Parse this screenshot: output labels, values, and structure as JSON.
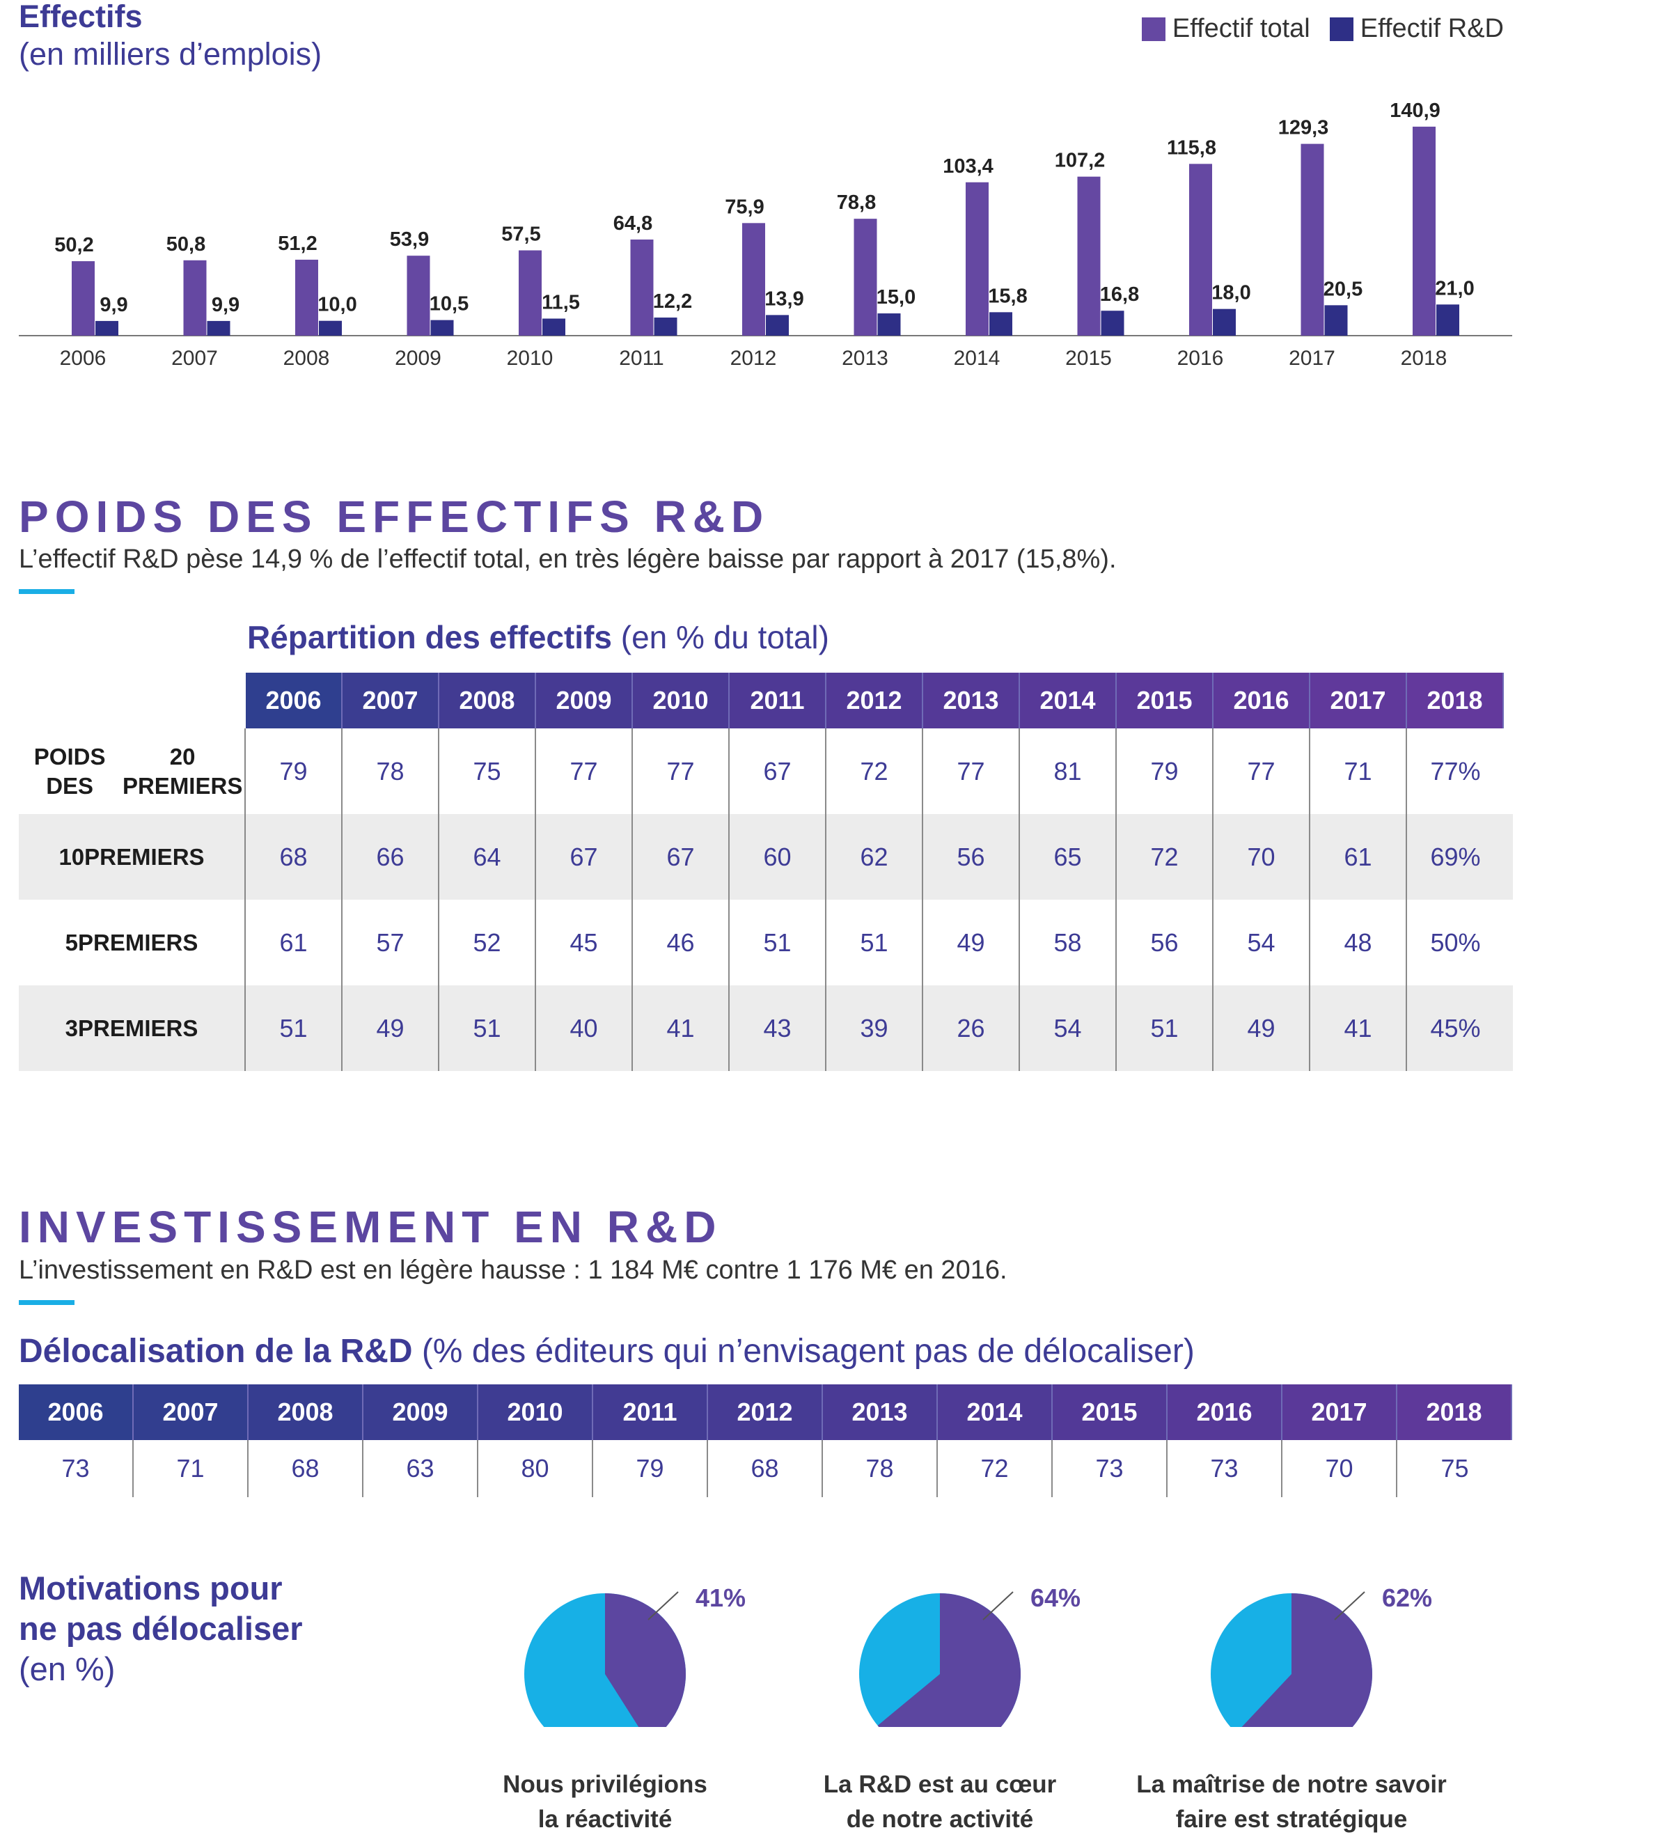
{
  "effectifs": {
    "title": "Effectifs",
    "subtitle": "(en milliers d’emplois)",
    "legend": [
      "Effectif total",
      "Effectif R&D"
    ]
  },
  "chart_data": [
    {
      "type": "bar",
      "title": "Effectifs",
      "subtitle": "(en milliers d’emplois)",
      "categories": [
        "2006",
        "2007",
        "2008",
        "2009",
        "2010",
        "2011",
        "2012",
        "2013",
        "2014",
        "2015",
        "2016",
        "2017",
        "2018"
      ],
      "series": [
        {
          "name": "Effectif total",
          "color": "#6548a2",
          "values": [
            50.2,
            50.8,
            51.2,
            53.9,
            57.5,
            64.8,
            75.9,
            78.8,
            103.4,
            107.2,
            115.8,
            129.3,
            140.9
          ],
          "labels": [
            "50,2",
            "50,8",
            "51,2",
            "53,9",
            "57,5",
            "64,8",
            "75,9",
            "78,8",
            "103,4",
            "107,2",
            "115,8",
            "129,3",
            "140,9"
          ]
        },
        {
          "name": "Effectif R&D",
          "color": "#2e2f86",
          "values": [
            9.9,
            9.9,
            10.0,
            10.5,
            11.5,
            12.2,
            13.9,
            15.0,
            15.8,
            16.8,
            18.0,
            20.5,
            21.0
          ],
          "labels": [
            "9,9",
            "9,9",
            "10,0",
            "10,5",
            "11,5",
            "12,2",
            "13,9",
            "15,0",
            "15,8",
            "16,8",
            "18,0",
            "20,5",
            "21,0"
          ]
        }
      ],
      "ylim": [
        0,
        145
      ]
    },
    {
      "type": "pie",
      "slices": [
        {
          "label": "Nous privilégions la réactivité",
          "value": 41
        }
      ]
    },
    {
      "type": "pie",
      "slices": [
        {
          "label": "La R&D est au cœur de notre activité",
          "value": 64
        }
      ]
    },
    {
      "type": "pie",
      "slices": [
        {
          "label": "La maîtrise de notre savoir faire est stratégique",
          "value": 62
        }
      ]
    }
  ],
  "poids": {
    "title": "POIDS DES EFFECTIFS R&D",
    "desc": "L’effectif R&D pèse 14,9 % de l’effectif total, en très légère baisse par rapport à 2017 (15,8%)."
  },
  "table1": {
    "title_bold": "Répartition des effectifs",
    "title_rest": " (en % du total)",
    "years": [
      "2006",
      "2007",
      "2008",
      "2009",
      "2010",
      "2011",
      "2012",
      "2013",
      "2014",
      "2015",
      "2016",
      "2017",
      "2018"
    ],
    "rows": [
      {
        "label1": "POIDS DES",
        "label2": "20 PREMIERS",
        "values": [
          "79",
          "78",
          "75",
          "77",
          "77",
          "67",
          "72",
          "77",
          "81",
          "79",
          "77",
          "71",
          "77%"
        ]
      },
      {
        "label1": "10",
        "label2": "PREMIERS",
        "values": [
          "68",
          "66",
          "64",
          "67",
          "67",
          "60",
          "62",
          "56",
          "65",
          "72",
          "70",
          "61",
          "69%"
        ]
      },
      {
        "label1": "5",
        "label2": "PREMIERS",
        "values": [
          "61",
          "57",
          "52",
          "45",
          "46",
          "51",
          "51",
          "49",
          "58",
          "56",
          "54",
          "48",
          "50%"
        ]
      },
      {
        "label1": "3",
        "label2": "PREMIERS",
        "values": [
          "51",
          "49",
          "51",
          "40",
          "41",
          "43",
          "39",
          "26",
          "54",
          "51",
          "49",
          "41",
          "45%"
        ]
      }
    ]
  },
  "invest": {
    "title": "INVESTISSEMENT EN R&D",
    "desc": "L’investissement en R&D est en légère hausse : 1 184 M€ contre 1 176 M€ en 2016."
  },
  "table2": {
    "title_bold": "Délocalisation de la R&D",
    "title_rest": " (% des éditeurs qui n’envisagent pas de délocaliser)",
    "years": [
      "2006",
      "2007",
      "2008",
      "2009",
      "2010",
      "2011",
      "2012",
      "2013",
      "2014",
      "2015",
      "2016",
      "2017",
      "2018"
    ],
    "values": [
      "73",
      "71",
      "68",
      "63",
      "80",
      "79",
      "68",
      "78",
      "72",
      "73",
      "73",
      "70",
      "75"
    ]
  },
  "motivations": {
    "title1": "Motivations pour",
    "title2": "ne pas délocaliser",
    "title3": "(en %)",
    "pies": [
      {
        "pct": "41%",
        "value": 41,
        "label1": "Nous privilégions",
        "label2": "la réactivité"
      },
      {
        "pct": "64%",
        "value": 64,
        "label1": "La R&D est au cœur",
        "label2": "de notre activité"
      },
      {
        "pct": "62%",
        "value": 62,
        "label1": "La maîtrise de notre savoir",
        "label2": "faire est stratégique"
      }
    ],
    "colors": {
      "accent": "#5c46a0",
      "rest": "#17b0e6"
    }
  }
}
